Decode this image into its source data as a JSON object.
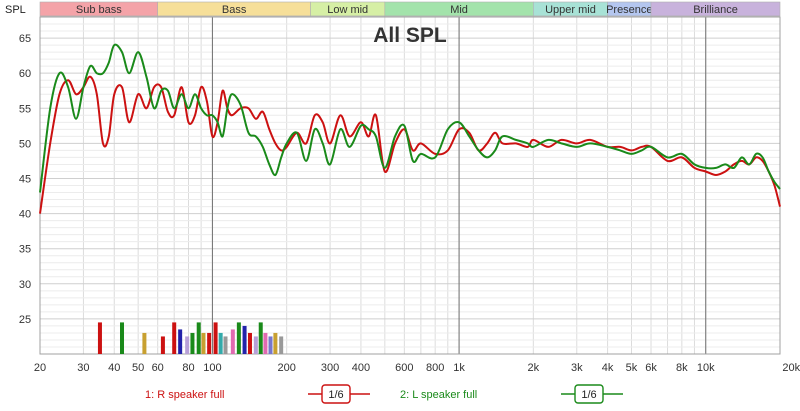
{
  "chart_data": {
    "type": "line",
    "title": "All SPL",
    "ylabel": "SPL",
    "xlabel": "",
    "x_scale": "log",
    "xlim": [
      20,
      20000
    ],
    "ylim": [
      20,
      68
    ],
    "x_ticks": [
      20,
      30,
      40,
      50,
      60,
      80,
      100,
      200,
      300,
      400,
      600,
      800,
      1000,
      2000,
      3000,
      4000,
      5000,
      6000,
      8000,
      10000,
      20000
    ],
    "x_tick_labels": [
      "20",
      "30",
      "40",
      "50",
      "60",
      "80",
      "100",
      "200",
      "300",
      "400",
      "600",
      "800",
      "1k",
      "2k",
      "3k",
      "4k",
      "5k",
      "6k",
      "8k",
      "10k",
      "20kHz"
    ],
    "y_ticks": [
      25,
      30,
      35,
      40,
      45,
      50,
      55,
      60,
      65
    ],
    "y_tick_labels": [
      "25",
      "30",
      "35",
      "40",
      "45",
      "50",
      "55",
      "60",
      "65"
    ],
    "grid": true,
    "bands": [
      {
        "label": "Sub bass",
        "from": 20,
        "to": 60,
        "color": "#f4a3a8"
      },
      {
        "label": "Bass",
        "from": 60,
        "to": 250,
        "color": "#f6df99"
      },
      {
        "label": "Low mid",
        "from": 250,
        "to": 500,
        "color": "#d6efa5"
      },
      {
        "label": "Mid",
        "from": 500,
        "to": 2000,
        "color": "#a3e3ab"
      },
      {
        "label": "Upper mid",
        "from": 2000,
        "to": 4000,
        "color": "#a8e2d6"
      },
      {
        "label": "Presence",
        "from": 4000,
        "to": 6000,
        "color": "#b4c6ef"
      },
      {
        "label": "Brilliance",
        "from": 6000,
        "to": 20000,
        "color": "#c8b2dc"
      }
    ],
    "series": [
      {
        "name": "R speaker full",
        "color": "#cc1111",
        "x": [
          20,
          22,
          24,
          26,
          28,
          30,
          32,
          34,
          36,
          38,
          40,
          43,
          46,
          50,
          54,
          58,
          62,
          66,
          70,
          75,
          80,
          85,
          90,
          95,
          100,
          105,
          110,
          115,
          120,
          130,
          140,
          150,
          160,
          170,
          180,
          190,
          200,
          220,
          240,
          260,
          280,
          300,
          330,
          360,
          400,
          430,
          460,
          500,
          550,
          600,
          650,
          700,
          800,
          900,
          1000,
          1100,
          1200,
          1300,
          1400,
          1500,
          1700,
          1900,
          2000,
          2300,
          2600,
          3000,
          3400,
          4000,
          4500,
          5000,
          5500,
          6000,
          7000,
          8000,
          9000,
          10000,
          11000,
          12000,
          13000,
          14000,
          15000,
          16000,
          17000,
          18000,
          19000,
          20000
        ],
        "y": [
          40,
          50,
          57,
          59,
          57,
          58,
          59.5,
          57,
          50,
          51,
          57,
          58,
          53,
          57,
          55,
          58,
          58,
          54.5,
          54,
          58,
          53,
          54,
          58,
          56,
          51,
          53,
          57.5,
          55,
          54,
          55,
          55,
          53.5,
          54.5,
          52,
          50,
          49,
          49.5,
          51.5,
          50,
          54,
          53,
          50,
          54,
          51,
          53,
          51,
          54,
          46,
          50,
          52,
          49,
          50,
          48.5,
          49,
          52,
          51.5,
          49,
          50,
          51.5,
          50,
          50,
          49.5,
          50.5,
          49.5,
          50.5,
          50,
          50.5,
          49.5,
          49.5,
          49,
          49.5,
          49.5,
          47.5,
          48,
          46.5,
          46,
          45.5,
          46,
          47,
          47.5,
          47,
          48,
          47.5,
          46,
          44,
          41
        ]
      },
      {
        "name": "L speaker full",
        "color": "#1a8a1a",
        "x": [
          20,
          22,
          24,
          26,
          28,
          30,
          32,
          34,
          36,
          38,
          40,
          43,
          46,
          50,
          54,
          58,
          62,
          66,
          70,
          75,
          80,
          85,
          90,
          95,
          100,
          105,
          110,
          115,
          120,
          130,
          140,
          150,
          160,
          170,
          180,
          190,
          200,
          220,
          240,
          260,
          280,
          300,
          330,
          360,
          400,
          430,
          460,
          500,
          550,
          600,
          650,
          700,
          800,
          900,
          1000,
          1100,
          1200,
          1300,
          1400,
          1500,
          1700,
          1900,
          2000,
          2300,
          2600,
          3000,
          3400,
          4000,
          4500,
          5000,
          5500,
          6000,
          7000,
          8000,
          9000,
          10000,
          11000,
          12000,
          13000,
          14000,
          15000,
          16000,
          17000,
          18000,
          19000,
          20000
        ],
        "y": [
          43,
          55,
          60,
          58,
          53.5,
          58,
          61,
          60,
          60,
          61.5,
          64,
          63,
          60,
          63,
          59.5,
          55,
          57.5,
          57.5,
          55,
          57,
          55,
          57,
          55,
          54,
          54,
          53,
          51,
          55,
          57,
          55.5,
          51.5,
          51,
          49.5,
          47,
          45.5,
          48,
          50,
          51.5,
          47.5,
          52,
          50,
          47,
          52,
          49.5,
          52.5,
          52,
          51,
          46.5,
          51,
          52.5,
          47.5,
          48.5,
          48,
          52,
          53,
          51,
          49,
          48,
          49,
          51,
          50.5,
          50,
          49.5,
          50.5,
          50,
          49.5,
          50,
          49.5,
          49,
          48.5,
          49,
          49.5,
          48,
          48.5,
          47,
          46.5,
          46.5,
          47,
          46.5,
          48,
          47,
          48.5,
          48,
          46,
          44.5,
          43.5
        ]
      }
    ],
    "legend": [
      {
        "label": "1: R speaker full",
        "smoothing": "1/6",
        "color": "#cc1111"
      },
      {
        "label": "2: L speaker full",
        "smoothing": "1/6",
        "color": "#1a8a1a"
      }
    ],
    "legend_position": "bottom",
    "markers": [
      {
        "freq": 35,
        "level": 24.5,
        "color": "#cc1111"
      },
      {
        "freq": 43,
        "level": 24.5,
        "color": "#1a8a1a"
      },
      {
        "freq": 53,
        "level": 23,
        "color": "#c8a030"
      },
      {
        "freq": 63,
        "level": 22.5,
        "color": "#cc1111"
      },
      {
        "freq": 70,
        "level": 24.5,
        "color": "#cc1111"
      },
      {
        "freq": 74,
        "level": 23.5,
        "color": "#2222aa"
      },
      {
        "freq": 79,
        "level": 22.5,
        "color": "#b8a0d8"
      },
      {
        "freq": 83,
        "level": 23,
        "color": "#1a8a1a"
      },
      {
        "freq": 88,
        "level": 24.5,
        "color": "#1a8a1a"
      },
      {
        "freq": 92,
        "level": 23,
        "color": "#c8a030"
      },
      {
        "freq": 97,
        "level": 23,
        "color": "#cc1111"
      },
      {
        "freq": 103,
        "level": 24.5,
        "color": "#cc1111"
      },
      {
        "freq": 108,
        "level": 23,
        "color": "#33aaaa"
      },
      {
        "freq": 113,
        "level": 22.5,
        "color": "#999999"
      },
      {
        "freq": 121,
        "level": 23.5,
        "color": "#e06ab0"
      },
      {
        "freq": 128,
        "level": 24.5,
        "color": "#1a8a1a"
      },
      {
        "freq": 135,
        "level": 24,
        "color": "#2222aa"
      },
      {
        "freq": 142,
        "level": 23,
        "color": "#cc1111"
      },
      {
        "freq": 150,
        "level": 22.5,
        "color": "#b8a0d8"
      },
      {
        "freq": 157,
        "level": 24.5,
        "color": "#1a8a1a"
      },
      {
        "freq": 164,
        "level": 23,
        "color": "#e06ab0"
      },
      {
        "freq": 172,
        "level": 22.5,
        "color": "#7777cc"
      },
      {
        "freq": 180,
        "level": 23,
        "color": "#c8a030"
      },
      {
        "freq": 190,
        "level": 22.5,
        "color": "#999999"
      }
    ]
  }
}
